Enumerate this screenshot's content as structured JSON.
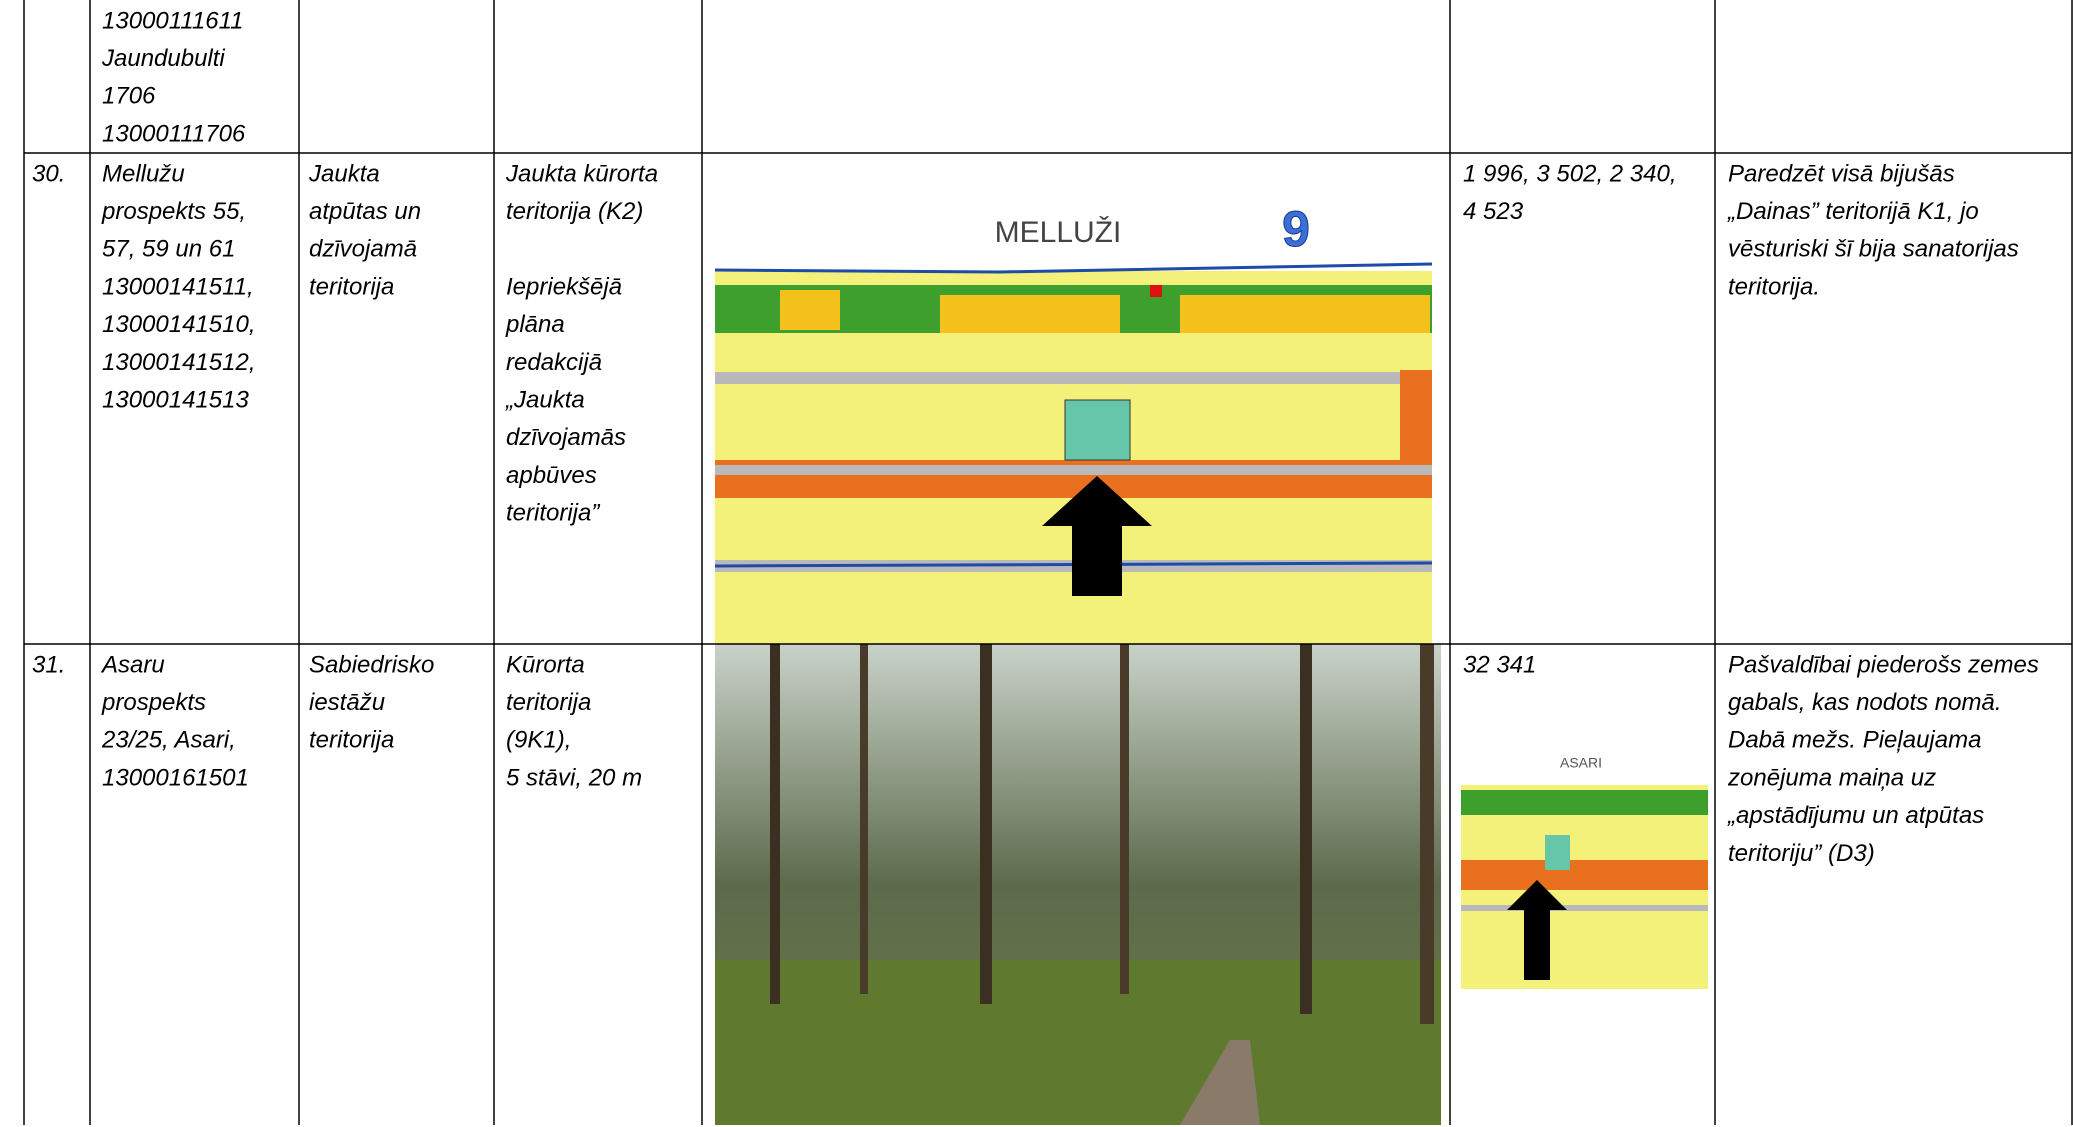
{
  "table": {
    "rows": [
      {
        "address": [
          "13000111611",
          "Jaundubulti",
          "1706",
          "13000111706"
        ]
      },
      {
        "number": "30.",
        "address": [
          "Mellužu",
          "prospekts 55,",
          "57, 59 un 61",
          "13000141511,",
          "13000141510,",
          "13000141512,",
          "13000141513"
        ],
        "current": [
          "Jaukta",
          "atpūtas un",
          "dzīvojamā",
          "teritorija"
        ],
        "proposed": [
          "Jaukta  kūrorta",
          "teritorija (K2)"
        ],
        "previous": [
          "Iepriekšējā",
          "plāna",
          "redakcijā",
          "„Jaukta",
          "dzīvojamās",
          "apbūves",
          "teritorija”"
        ],
        "map": {
          "title": "MELLUŽI",
          "number": "9"
        },
        "area": [
          "1 996, 3 502, 2 340,",
          "4 523"
        ],
        "note": [
          "Paredzēt visā bijušās",
          "„Dainas” teritorijā K1, jo",
          "vēsturiski šī bija sanatorijas",
          "teritorija."
        ]
      },
      {
        "number": "31.",
        "address": [
          "Asaru",
          "prospekts",
          "23/25, Asari,",
          "13000161501"
        ],
        "current": [
          "Sabiedrisko",
          "iestāžu",
          "teritorija"
        ],
        "proposed": [
          "Kūrorta",
          "teritorija",
          "(9K1),",
          "5 stāvi, 20 m"
        ],
        "area": [
          "32 341"
        ],
        "thumb": {
          "title": "ASARI"
        },
        "note": [
          "Pašvaldībai piederošs zemes",
          "gabals, kas nodots nomā.",
          "Dabā mežs. Pieļaujama",
          "zonējuma maiņa uz",
          "„apstādījumu un atpūtas",
          "teritoriju” (D3)"
        ]
      }
    ]
  }
}
